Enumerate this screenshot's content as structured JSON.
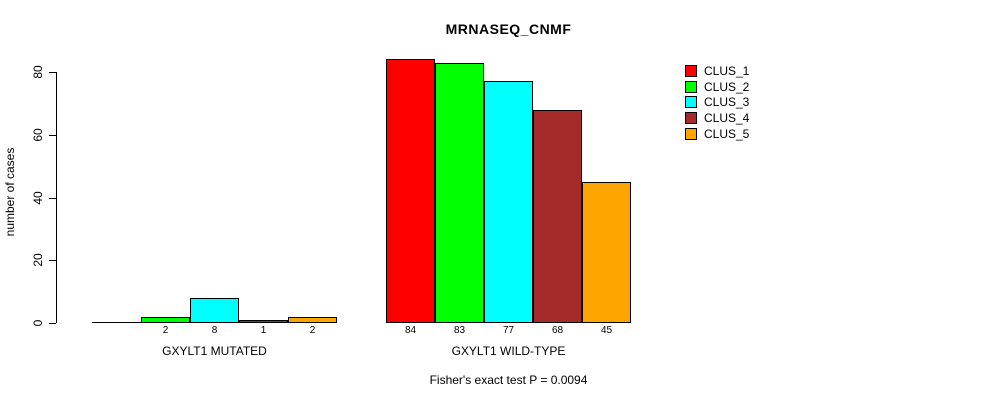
{
  "chart_data": {
    "type": "bar",
    "title": "MRNASEQ_CNMF",
    "ylabel": "number of cases",
    "xlabel": "",
    "ylim": [
      0,
      80
    ],
    "yticks": [
      0,
      20,
      40,
      60,
      80
    ],
    "grid": false,
    "legend_position": "top-right",
    "legend": [
      {
        "label": "CLUS_1",
        "color": "#FF0000"
      },
      {
        "label": "CLUS_2",
        "color": "#00FF00"
      },
      {
        "label": "CLUS_3",
        "color": "#00FFFF"
      },
      {
        "label": "CLUS_4",
        "color": "#A52A2A"
      },
      {
        "label": "CLUS_5",
        "color": "#FFA500"
      }
    ],
    "series_colors": [
      "#FF0000",
      "#00FF00",
      "#00FFFF",
      "#A52A2A",
      "#FFA500"
    ],
    "groups": [
      {
        "label": "GXYLT1 MUTATED",
        "values": [
          0,
          2,
          8,
          1,
          2
        ],
        "bar_labels": [
          "",
          "2",
          "8",
          "1",
          "2"
        ]
      },
      {
        "label": "GXYLT1 WILD-TYPE",
        "values": [
          84,
          83,
          77,
          68,
          45
        ],
        "bar_labels": [
          "84",
          "83",
          "77",
          "68",
          "45"
        ]
      }
    ],
    "annotation": "Fisher's exact test P = 0.0094"
  }
}
